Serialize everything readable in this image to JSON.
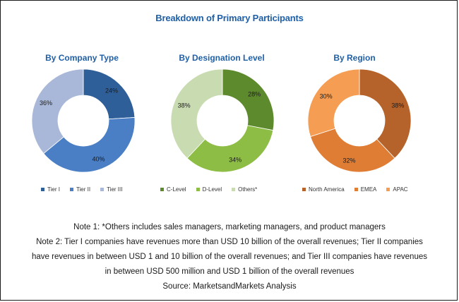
{
  "title": "Breakdown of Primary Participants",
  "chart_data": [
    {
      "type": "pie",
      "title": "By Company Type",
      "categories": [
        "Tier I",
        "Tier II",
        "Tier III"
      ],
      "values": [
        24,
        40,
        36
      ],
      "labels": [
        "24%",
        "40%",
        "36%"
      ],
      "colors": [
        "#2e5f99",
        "#4a7fc5",
        "#a9b8d8"
      ],
      "legend_position": "bottom"
    },
    {
      "type": "pie",
      "title": "By Designation Level",
      "categories": [
        "C-Level",
        "D-Level",
        "Others*"
      ],
      "values": [
        28,
        34,
        38
      ],
      "labels": [
        "28%",
        "34%",
        "38%"
      ],
      "colors": [
        "#5e8a2e",
        "#8dbd45",
        "#c9dcb1"
      ],
      "legend_position": "bottom"
    },
    {
      "type": "pie",
      "title": "By Region",
      "categories": [
        "North America",
        "EMEA",
        "APAC"
      ],
      "values": [
        38,
        32,
        30
      ],
      "labels": [
        "38%",
        "32%",
        "30%"
      ],
      "colors": [
        "#b5632a",
        "#e07d34",
        "#f59d53"
      ],
      "legend_position": "bottom"
    }
  ],
  "notes": [
    "Note 1: *Others includes sales managers, marketing managers, and product managers",
    "Note 2: Tier I companies have revenues more than USD 10 billion of the overall revenues; Tier II companies",
    "have revenues in between USD 1 and 10 billion of the overall revenues; and Tier III companies have revenues",
    "in between USD 500 million and USD 1 billion of the overall revenues",
    "Source: MarketsandMarkets Analysis"
  ]
}
